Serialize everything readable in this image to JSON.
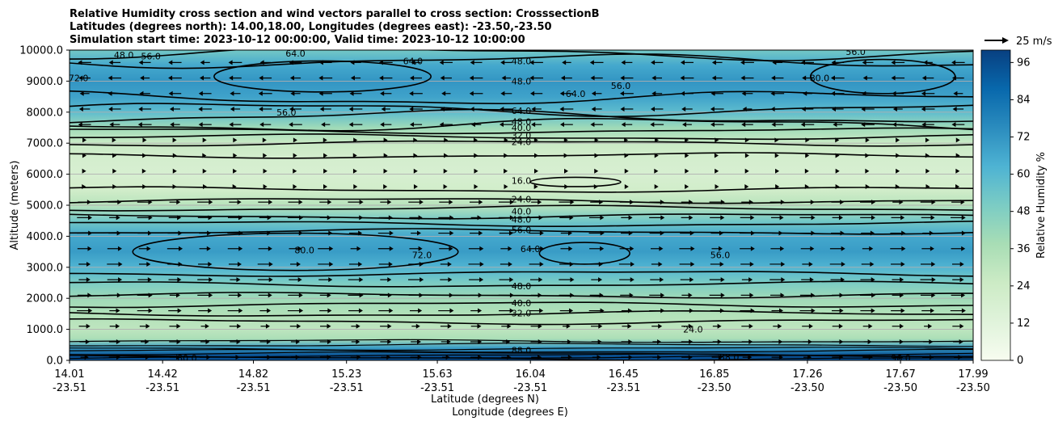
{
  "chart_data": {
    "type": "heatmap",
    "title_lines": [
      "Relative Humidity cross section and wind vectors parallel to cross section: CrosssectionB",
      "Latitudes (degrees north): 14.00,18.00, Longitudes (degrees east): -23.50,-23.50",
      "Simulation start time: 2023-10-12 00:00:00, Valid time: 2023-10-12 10:00:00"
    ],
    "ylabel": "Altitude (meters)",
    "xlabel_lines": [
      "Latitude (degrees N)",
      "Longitude (degrees E)"
    ],
    "ylim": [
      0,
      10000
    ],
    "yticks": [
      "0.0",
      "1000.0",
      "2000.0",
      "3000.0",
      "4000.0",
      "5000.0",
      "6000.0",
      "7000.0",
      "8000.0",
      "9000.0",
      "10000.0"
    ],
    "xticks": [
      {
        "lat": "14.01",
        "lon": "-23.51"
      },
      {
        "lat": "14.42",
        "lon": "-23.51"
      },
      {
        "lat": "14.82",
        "lon": "-23.51"
      },
      {
        "lat": "15.23",
        "lon": "-23.51"
      },
      {
        "lat": "15.63",
        "lon": "-23.51"
      },
      {
        "lat": "16.04",
        "lon": "-23.51"
      },
      {
        "lat": "16.45",
        "lon": "-23.51"
      },
      {
        "lat": "16.85",
        "lon": "-23.50"
      },
      {
        "lat": "17.26",
        "lon": "-23.50"
      },
      {
        "lat": "17.67",
        "lon": "-23.50"
      },
      {
        "lat": "17.99",
        "lon": "-23.50"
      }
    ],
    "colorbar": {
      "label": "Relative Humidity %",
      "ticks": [
        "0",
        "12",
        "24",
        "36",
        "48",
        "60",
        "72",
        "84",
        "96"
      ],
      "range": [
        0,
        100
      ],
      "levels": 25,
      "colors": [
        "#f7fcf0",
        "#e0f3db",
        "#ccebc5",
        "#a8ddb5",
        "#7bccc4",
        "#4eb3d3",
        "#2b8cbe",
        "#0868ac",
        "#084081"
      ]
    },
    "quiver_key": "25 m/s",
    "grid": "horizontal",
    "rh_profile": [
      {
        "alt": 0,
        "rh": 96
      },
      {
        "alt": 150,
        "rh": 96
      },
      {
        "alt": 400,
        "rh": 70
      },
      {
        "alt": 700,
        "rh": 36
      },
      {
        "alt": 1000,
        "rh": 30
      },
      {
        "alt": 1500,
        "rh": 34
      },
      {
        "alt": 2000,
        "rh": 40
      },
      {
        "alt": 2500,
        "rh": 50
      },
      {
        "alt": 3000,
        "rh": 62
      },
      {
        "alt": 3500,
        "rh": 70
      },
      {
        "alt": 4000,
        "rh": 66
      },
      {
        "alt": 4500,
        "rh": 52
      },
      {
        "alt": 5000,
        "rh": 32
      },
      {
        "alt": 5500,
        "rh": 22
      },
      {
        "alt": 6000,
        "rh": 18
      },
      {
        "alt": 6500,
        "rh": 20
      },
      {
        "alt": 7000,
        "rh": 26
      },
      {
        "alt": 7500,
        "rh": 40
      },
      {
        "alt": 8000,
        "rh": 58
      },
      {
        "alt": 8500,
        "rh": 68
      },
      {
        "alt": 9000,
        "rh": 72
      },
      {
        "alt": 9500,
        "rh": 66
      },
      {
        "alt": 10000,
        "rh": 52
      }
    ],
    "contour_labels": [
      {
        "text": "24.0",
        "lat_frac": 0.5,
        "alt": 7050
      },
      {
        "text": "32.0",
        "lat_frac": 0.5,
        "alt": 7250
      },
      {
        "text": "40.0",
        "lat_frac": 0.5,
        "alt": 7500
      },
      {
        "text": "48.0",
        "lat_frac": 0.5,
        "alt": 7700
      },
      {
        "text": "64.0",
        "lat_frac": 0.5,
        "alt": 8050
      },
      {
        "text": "56.0",
        "lat_frac": 0.24,
        "alt": 8000
      },
      {
        "text": "64.0",
        "lat_frac": 0.56,
        "alt": 8600
      },
      {
        "text": "56.0",
        "lat_frac": 0.61,
        "alt": 8850
      },
      {
        "text": "48.0",
        "lat_frac": 0.5,
        "alt": 9000
      },
      {
        "text": "48.0",
        "lat_frac": 0.5,
        "alt": 9650
      },
      {
        "text": "48.0",
        "lat_frac": 0.06,
        "alt": 9850
      },
      {
        "text": "56.0",
        "lat_frac": 0.09,
        "alt": 9800
      },
      {
        "text": "64.0",
        "lat_frac": 0.25,
        "alt": 9900
      },
      {
        "text": "64.0",
        "lat_frac": 0.38,
        "alt": 9650
      },
      {
        "text": "72.0",
        "lat_frac": 0.01,
        "alt": 9100
      },
      {
        "text": "80.0",
        "lat_frac": 0.83,
        "alt": 9100
      },
      {
        "text": "56.0",
        "lat_frac": 0.87,
        "alt": 9950
      },
      {
        "text": "16.0",
        "lat_frac": 0.5,
        "alt": 5800
      },
      {
        "text": "24.0",
        "lat_frac": 0.5,
        "alt": 5200
      },
      {
        "text": "40.0",
        "lat_frac": 0.5,
        "alt": 4800
      },
      {
        "text": "48.0",
        "lat_frac": 0.5,
        "alt": 4550
      },
      {
        "text": "56.0",
        "lat_frac": 0.5,
        "alt": 4200
      },
      {
        "text": "64.0",
        "lat_frac": 0.51,
        "alt": 3600
      },
      {
        "text": "72.0",
        "lat_frac": 0.39,
        "alt": 3400
      },
      {
        "text": "80.0",
        "lat_frac": 0.26,
        "alt": 3550
      },
      {
        "text": "56.0",
        "lat_frac": 0.72,
        "alt": 3400
      },
      {
        "text": "48.0",
        "lat_frac": 0.5,
        "alt": 2400
      },
      {
        "text": "40.0",
        "lat_frac": 0.5,
        "alt": 1850
      },
      {
        "text": "32.0",
        "lat_frac": 0.5,
        "alt": 1520
      },
      {
        "text": "24.0",
        "lat_frac": 0.69,
        "alt": 1000
      },
      {
        "text": "88.0",
        "lat_frac": 0.5,
        "alt": 320
      },
      {
        "text": "88.0",
        "lat_frac": 0.73,
        "alt": 100
      },
      {
        "text": "96.0",
        "lat_frac": 0.92,
        "alt": 80
      },
      {
        "text": "80.0",
        "lat_frac": 0.13,
        "alt": 80
      }
    ]
  }
}
